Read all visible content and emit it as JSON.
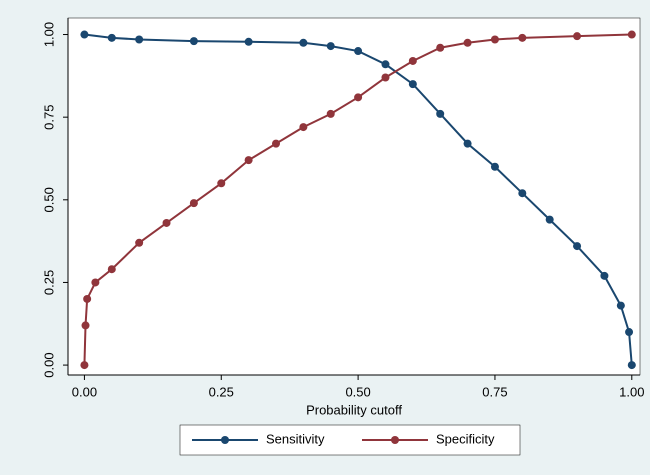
{
  "chart_data": {
    "type": "line",
    "xlabel": "Probability cutoff",
    "xlim": [
      -0.03,
      1.015
    ],
    "ylim": [
      -0.03,
      1.05
    ],
    "xticks": [
      {
        "value": 0,
        "label": "0.00"
      },
      {
        "value": 0.25,
        "label": "0.25"
      },
      {
        "value": 0.5,
        "label": "0.50"
      },
      {
        "value": 0.75,
        "label": "0.75"
      },
      {
        "value": 1,
        "label": "1.00"
      }
    ],
    "yticks": [
      {
        "value": 0,
        "label": "0.00"
      },
      {
        "value": 0.25,
        "label": "0.25"
      },
      {
        "value": 0.5,
        "label": "0.50"
      },
      {
        "value": 0.75,
        "label": "0.75"
      },
      {
        "value": 1,
        "label": "1.00"
      }
    ],
    "legend": "bottom",
    "series": [
      {
        "name": "Sensitivity",
        "color": "#1a476f",
        "x": [
          0,
          0.05,
          0.1,
          0.2,
          0.3,
          0.4,
          0.45,
          0.5,
          0.55,
          0.6,
          0.65,
          0.7,
          0.75,
          0.8,
          0.85,
          0.9,
          0.95,
          0.98,
          0.995,
          1.0
        ],
        "values": [
          1.0,
          0.99,
          0.985,
          0.98,
          0.978,
          0.975,
          0.965,
          0.95,
          0.91,
          0.85,
          0.76,
          0.67,
          0.6,
          0.52,
          0.44,
          0.36,
          0.27,
          0.18,
          0.1,
          0.0
        ]
      },
      {
        "name": "Specificity",
        "color": "#90353b",
        "x": [
          0,
          0.002,
          0.005,
          0.02,
          0.05,
          0.1,
          0.15,
          0.2,
          0.25,
          0.3,
          0.35,
          0.4,
          0.45,
          0.5,
          0.55,
          0.6,
          0.65,
          0.7,
          0.75,
          0.8,
          0.9,
          1.0
        ],
        "values": [
          0.0,
          0.12,
          0.2,
          0.25,
          0.29,
          0.37,
          0.43,
          0.49,
          0.55,
          0.62,
          0.67,
          0.72,
          0.76,
          0.81,
          0.87,
          0.92,
          0.96,
          0.975,
          0.985,
          0.99,
          0.995,
          1.0
        ]
      }
    ]
  }
}
